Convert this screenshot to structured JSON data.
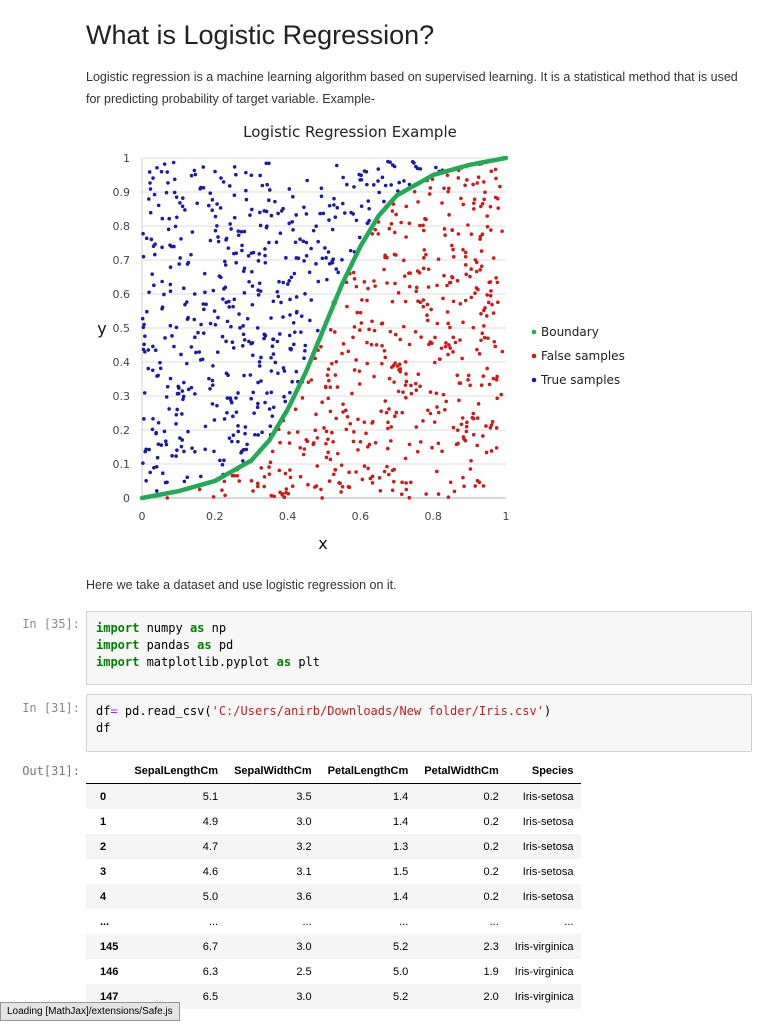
{
  "page": {
    "title": "What is Logistic Regression?",
    "intro": "Logistic regression is a machine learning algorithm based on supervised learning. It is a statistical method that is used for predicting probability of target variable. Example-",
    "para2": "Here we take a dataset and use logistic regression on it."
  },
  "chart_data": {
    "type": "scatter",
    "title": "Logistic Regression Example",
    "xlabel": "x",
    "ylabel": "y",
    "xlim": [
      0,
      1
    ],
    "ylim": [
      0,
      1
    ],
    "x_ticks": [
      "0",
      "0.2",
      "0.4",
      "0.6",
      "0.8",
      "1"
    ],
    "y_ticks": [
      "0",
      "0.1",
      "0.2",
      "0.3",
      "0.4",
      "0.5",
      "0.6",
      "0.7",
      "0.8",
      "0.9",
      "1"
    ],
    "grid": "horizontal",
    "legend_position": "right",
    "series": [
      {
        "name": "Boundary",
        "color": "#22aa55",
        "kind": "curve",
        "x": [
          0.0,
          0.1,
          0.2,
          0.3,
          0.35,
          0.4,
          0.45,
          0.5,
          0.55,
          0.6,
          0.65,
          0.7,
          0.8,
          0.9,
          1.0
        ],
        "y": [
          0.0,
          0.02,
          0.05,
          0.11,
          0.17,
          0.26,
          0.37,
          0.5,
          0.63,
          0.74,
          0.83,
          0.89,
          0.95,
          0.98,
          1.0
        ]
      },
      {
        "name": "False samples",
        "color": "#cc1a1a",
        "kind": "points",
        "region": "below boundary",
        "approx_count": 500
      },
      {
        "name": "True samples",
        "color": "#1a1aaa",
        "kind": "points",
        "region": "above boundary",
        "approx_count": 500
      }
    ]
  },
  "cells": [
    {
      "prompt": "In [35]:",
      "lines": [
        [
          {
            "t": "import",
            "c": "kw"
          },
          {
            "t": " numpy "
          },
          {
            "t": "as",
            "c": "kw"
          },
          {
            "t": " np"
          }
        ],
        [
          {
            "t": "import",
            "c": "kw"
          },
          {
            "t": " pandas "
          },
          {
            "t": "as",
            "c": "kw"
          },
          {
            "t": " pd"
          }
        ],
        [
          {
            "t": "import",
            "c": "kw"
          },
          {
            "t": " matplotlib.pyplot "
          },
          {
            "t": "as",
            "c": "kw"
          },
          {
            "t": " plt"
          }
        ]
      ]
    },
    {
      "prompt": "In [31]:",
      "lines": [
        [
          {
            "t": "df"
          },
          {
            "t": "=",
            "c": "eq"
          },
          {
            "t": " pd.read_csv("
          },
          {
            "t": "'C:/Users/anirb/Downloads/New folder/Iris.csv'",
            "c": "str"
          },
          {
            "t": ")"
          }
        ],
        [
          {
            "t": "df"
          }
        ]
      ]
    }
  ],
  "output": {
    "prompt": "Out[31]:",
    "columns": [
      "",
      "SepalLengthCm",
      "SepalWidthCm",
      "PetalLengthCm",
      "PetalWidthCm",
      "Species"
    ],
    "rows": [
      [
        "0",
        "5.1",
        "3.5",
        "1.4",
        "0.2",
        "Iris-setosa"
      ],
      [
        "1",
        "4.9",
        "3.0",
        "1.4",
        "0.2",
        "Iris-setosa"
      ],
      [
        "2",
        "4.7",
        "3.2",
        "1.3",
        "0.2",
        "Iris-setosa"
      ],
      [
        "3",
        "4.6",
        "3.1",
        "1.5",
        "0.2",
        "Iris-setosa"
      ],
      [
        "4",
        "5.0",
        "3.6",
        "1.4",
        "0.2",
        "Iris-setosa"
      ],
      [
        "...",
        "...",
        "...",
        "...",
        "...",
        "..."
      ],
      [
        "145",
        "6.7",
        "3.0",
        "5.2",
        "2.3",
        "Iris-virginica"
      ],
      [
        "146",
        "6.3",
        "2.5",
        "5.0",
        "1.9",
        "Iris-virginica"
      ],
      [
        "147",
        "6.5",
        "3.0",
        "5.2",
        "2.0",
        "Iris-virginica"
      ]
    ]
  },
  "status": {
    "text": "Loading [MathJax]/extensions/Safe.js"
  }
}
